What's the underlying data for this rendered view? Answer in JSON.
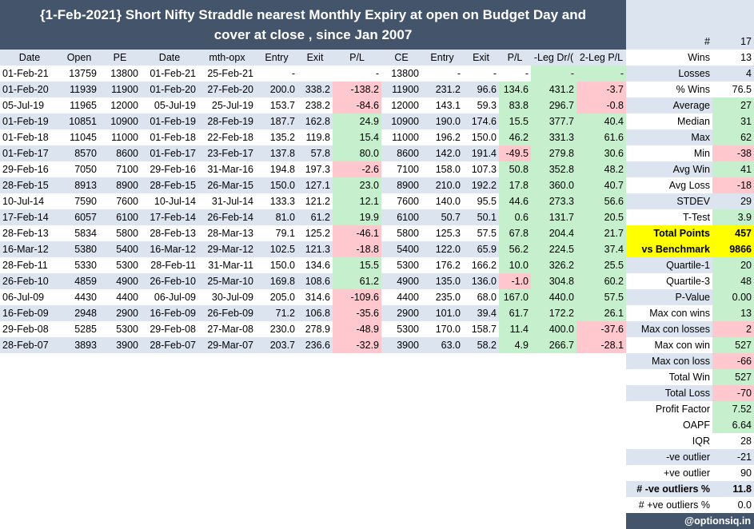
{
  "title": "{1-Feb-2021} Short Nifty Straddle nearest Monthly Expiry at open on Budget Day and cover at close , since Jan 2007",
  "headers": [
    "Date",
    "Open",
    "PE",
    "Date",
    "mth-opx",
    "Entry",
    "Exit",
    "P/L",
    "CE",
    "Entry",
    "Exit",
    "P/L",
    "-Leg Dr/(",
    "2-Leg P/L"
  ],
  "rows": [
    [
      "01-Feb-21",
      "13759",
      "13800",
      "01-Feb-21",
      "25-Feb-21",
      "-",
      "",
      "-",
      "13800",
      "-",
      "-",
      "-",
      "-",
      "-"
    ],
    [
      "01-Feb-20",
      "11939",
      "11900",
      "01-Feb-20",
      "27-Feb-20",
      "200.0",
      "338.2",
      "-138.2",
      "11900",
      "231.2",
      "96.6",
      "134.6",
      "431.2",
      "-3.7"
    ],
    [
      "05-Jul-19",
      "11965",
      "12000",
      "05-Jul-19",
      "25-Jul-19",
      "153.7",
      "238.2",
      "-84.6",
      "12000",
      "143.1",
      "59.3",
      "83.8",
      "296.7",
      "-0.8"
    ],
    [
      "01-Feb-19",
      "10851",
      "10900",
      "01-Feb-19",
      "28-Feb-19",
      "187.7",
      "162.8",
      "24.9",
      "10900",
      "190.0",
      "174.6",
      "15.5",
      "377.7",
      "40.4"
    ],
    [
      "01-Feb-18",
      "11045",
      "11000",
      "01-Feb-18",
      "22-Feb-18",
      "135.2",
      "119.8",
      "15.4",
      "11000",
      "196.2",
      "150.0",
      "46.2",
      "331.3",
      "61.6"
    ],
    [
      "01-Feb-17",
      "8570",
      "8600",
      "01-Feb-17",
      "23-Feb-17",
      "137.8",
      "57.8",
      "80.0",
      "8600",
      "142.0",
      "191.4",
      "-49.5",
      "279.8",
      "30.6"
    ],
    [
      "29-Feb-16",
      "7050",
      "7100",
      "29-Feb-16",
      "31-Mar-16",
      "194.8",
      "197.3",
      "-2.6",
      "7100",
      "158.0",
      "107.3",
      "50.8",
      "352.8",
      "48.2"
    ],
    [
      "28-Feb-15",
      "8913",
      "8900",
      "28-Feb-15",
      "26-Mar-15",
      "150.0",
      "127.1",
      "23.0",
      "8900",
      "210.0",
      "192.2",
      "17.8",
      "360.0",
      "40.7"
    ],
    [
      "10-Jul-14",
      "7590",
      "7600",
      "10-Jul-14",
      "31-Jul-14",
      "133.3",
      "121.2",
      "12.1",
      "7600",
      "140.0",
      "95.5",
      "44.6",
      "273.3",
      "56.6"
    ],
    [
      "17-Feb-14",
      "6057",
      "6100",
      "17-Feb-14",
      "26-Feb-14",
      "81.0",
      "61.2",
      "19.9",
      "6100",
      "50.7",
      "50.1",
      "0.6",
      "131.7",
      "20.5"
    ],
    [
      "28-Feb-13",
      "5834",
      "5800",
      "28-Feb-13",
      "28-Mar-13",
      "79.1",
      "125.2",
      "-46.1",
      "5800",
      "125.3",
      "57.5",
      "67.8",
      "204.4",
      "21.7"
    ],
    [
      "16-Mar-12",
      "5380",
      "5400",
      "16-Mar-12",
      "29-Mar-12",
      "102.5",
      "121.3",
      "-18.8",
      "5400",
      "122.0",
      "65.9",
      "56.2",
      "224.5",
      "37.4"
    ],
    [
      "28-Feb-11",
      "5330",
      "5300",
      "28-Feb-11",
      "31-Mar-11",
      "150.0",
      "134.6",
      "15.5",
      "5300",
      "176.2",
      "166.2",
      "10.0",
      "326.2",
      "25.5"
    ],
    [
      "26-Feb-10",
      "4859",
      "4900",
      "26-Feb-10",
      "25-Mar-10",
      "169.8",
      "108.6",
      "61.2",
      "4900",
      "135.0",
      "136.0",
      "-1.0",
      "304.8",
      "60.2"
    ],
    [
      "06-Jul-09",
      "4430",
      "4400",
      "06-Jul-09",
      "30-Jul-09",
      "205.0",
      "314.6",
      "-109.6",
      "4400",
      "235.0",
      "68.0",
      "167.0",
      "440.0",
      "57.5"
    ],
    [
      "16-Feb-09",
      "2948",
      "2900",
      "16-Feb-09",
      "26-Feb-09",
      "71.2",
      "106.8",
      "-35.6",
      "2900",
      "101.0",
      "39.4",
      "61.7",
      "172.2",
      "26.1"
    ],
    [
      "29-Feb-08",
      "5285",
      "5300",
      "29-Feb-08",
      "27-Mar-08",
      "230.0",
      "278.9",
      "-48.9",
      "5300",
      "170.0",
      "158.7",
      "11.4",
      "400.0",
      "-37.6"
    ],
    [
      "28-Feb-07",
      "3893",
      "3900",
      "28-Feb-07",
      "29-Mar-07",
      "203.7",
      "236.6",
      "-32.9",
      "3900",
      "63.0",
      "58.2",
      "4.9",
      "266.7",
      "-28.1"
    ]
  ],
  "cell_colors": [
    [
      "",
      "",
      "",
      "",
      "",
      "",
      "",
      "",
      "",
      "",
      "",
      "",
      "green",
      "green"
    ],
    [
      "",
      "",
      "",
      "",
      "",
      "",
      "",
      "red",
      "",
      "",
      "",
      "green",
      "green",
      "red"
    ],
    [
      "",
      "",
      "",
      "",
      "",
      "",
      "",
      "red",
      "",
      "",
      "",
      "green",
      "green",
      "red"
    ],
    [
      "",
      "",
      "",
      "",
      "",
      "",
      "",
      "green",
      "",
      "",
      "",
      "green",
      "green",
      "green"
    ],
    [
      "",
      "",
      "",
      "",
      "",
      "",
      "",
      "green",
      "",
      "",
      "",
      "green",
      "green",
      "green"
    ],
    [
      "",
      "",
      "",
      "",
      "",
      "",
      "",
      "green",
      "",
      "",
      "",
      "red",
      "green",
      "green"
    ],
    [
      "",
      "",
      "",
      "",
      "",
      "",
      "",
      "red",
      "",
      "",
      "",
      "green",
      "green",
      "green"
    ],
    [
      "",
      "",
      "",
      "",
      "",
      "",
      "",
      "green",
      "",
      "",
      "",
      "green",
      "green",
      "green"
    ],
    [
      "",
      "",
      "",
      "",
      "",
      "",
      "",
      "green",
      "",
      "",
      "",
      "green",
      "green",
      "green"
    ],
    [
      "",
      "",
      "",
      "",
      "",
      "",
      "",
      "green",
      "",
      "",
      "",
      "green",
      "green",
      "green"
    ],
    [
      "",
      "",
      "",
      "",
      "",
      "",
      "",
      "red",
      "",
      "",
      "",
      "green",
      "green",
      "green"
    ],
    [
      "",
      "",
      "",
      "",
      "",
      "",
      "",
      "red",
      "",
      "",
      "",
      "green",
      "green",
      "green"
    ],
    [
      "",
      "",
      "",
      "",
      "",
      "",
      "",
      "green",
      "",
      "",
      "",
      "green",
      "green",
      "green"
    ],
    [
      "",
      "",
      "",
      "",
      "",
      "",
      "",
      "green",
      "",
      "",
      "",
      "red",
      "green",
      "green"
    ],
    [
      "",
      "",
      "",
      "",
      "",
      "",
      "",
      "red",
      "",
      "",
      "",
      "green",
      "green",
      "green"
    ],
    [
      "",
      "",
      "",
      "",
      "",
      "",
      "",
      "red",
      "",
      "",
      "",
      "green",
      "green",
      "green"
    ],
    [
      "",
      "",
      "",
      "",
      "",
      "",
      "",
      "red",
      "",
      "",
      "",
      "green",
      "green",
      "red"
    ],
    [
      "",
      "",
      "",
      "",
      "",
      "",
      "",
      "red",
      "",
      "",
      "",
      "green",
      "green",
      "red"
    ]
  ],
  "stats": [
    {
      "label": "#",
      "value": "17",
      "label_style": "band",
      "value_style": "band"
    },
    {
      "label": "Wins",
      "value": "13",
      "label_style": "",
      "value_style": ""
    },
    {
      "label": "Losses",
      "value": "4",
      "label_style": "band",
      "value_style": "band"
    },
    {
      "label": "% Wins",
      "value": "76.5",
      "label_style": "",
      "value_style": ""
    },
    {
      "label": "Average",
      "value": "27",
      "label_style": "band",
      "value_style": "green"
    },
    {
      "label": "Median",
      "value": "31",
      "label_style": "",
      "value_style": "green"
    },
    {
      "label": "Max",
      "value": "62",
      "label_style": "band",
      "value_style": "green"
    },
    {
      "label": "Min",
      "value": "-38",
      "label_style": "",
      "value_style": "red"
    },
    {
      "label": "Avg Win",
      "value": "41",
      "label_style": "band",
      "value_style": "green"
    },
    {
      "label": "Avg Loss",
      "value": "-18",
      "label_style": "",
      "value_style": "red"
    },
    {
      "label": "STDEV",
      "value": "29",
      "label_style": "band",
      "value_style": "band"
    },
    {
      "label": "T-Test",
      "value": "3.9",
      "label_style": "",
      "value_style": "green"
    },
    {
      "label": "Total  Points",
      "value": "457",
      "label_style": "yellow",
      "value_style": "yellow"
    },
    {
      "label": "vs  Benchmark",
      "value": "9866",
      "label_style": "yellow",
      "value_style": "yellow"
    },
    {
      "label": "Quartile-1",
      "value": "20",
      "label_style": "band",
      "value_style": "green"
    },
    {
      "label": "Quartile-3",
      "value": "48",
      "label_style": "",
      "value_style": "green"
    },
    {
      "label": "P-Value",
      "value": "0.00",
      "label_style": "band",
      "value_style": "green"
    },
    {
      "label": "Max con wins",
      "value": "13",
      "label_style": "",
      "value_style": "green"
    },
    {
      "label": "Max con losses",
      "value": "2",
      "label_style": "band",
      "value_style": "red"
    },
    {
      "label": "Max con win",
      "value": "527",
      "label_style": "",
      "value_style": "green"
    },
    {
      "label": "Max con loss",
      "value": "-66",
      "label_style": "band",
      "value_style": "red"
    },
    {
      "label": "Total Win",
      "value": "527",
      "label_style": "",
      "value_style": "green"
    },
    {
      "label": "Total Loss",
      "value": "-70",
      "label_style": "band",
      "value_style": "red"
    },
    {
      "label": "Profit Factor",
      "value": "7.52",
      "label_style": "",
      "value_style": "green"
    },
    {
      "label": "OAPF",
      "value": "6.64",
      "label_style": "",
      "value_style": "green"
    },
    {
      "label": "IQR",
      "value": "28",
      "label_style": "",
      "value_style": ""
    },
    {
      "label": "-ve outlier",
      "value": "-21",
      "label_style": "band",
      "value_style": "band"
    },
    {
      "label": "+ve outlier",
      "value": "90",
      "label_style": "",
      "value_style": ""
    },
    {
      "label": "# -ve outliers %",
      "value": "11.8",
      "label_style": "band bold",
      "value_style": "band bold"
    },
    {
      "label": "# +ve outliers %",
      "value": "0.0",
      "label_style": "",
      "value_style": ""
    }
  ],
  "footer": "@optionsiq.in"
}
